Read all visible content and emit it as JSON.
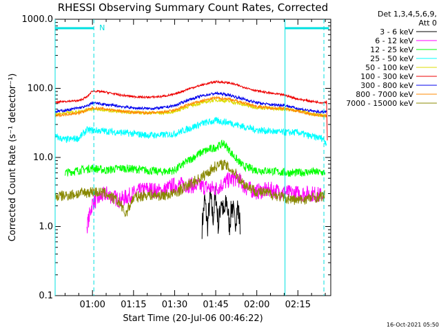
{
  "chart_data": {
    "type": "line",
    "title": "RHESSI Observing Summary Count Rates, Corrected",
    "ylabel": "Corrected Count Rate (s⁻¹ detector⁻¹)",
    "xlabel": "Start Time (20-Jul-06 00:46:22)",
    "footer": "16-Oct-2021 05:50",
    "yscale": "log",
    "ylim": [
      0.1,
      1000
    ],
    "xlim_minutes": [
      46.37,
      147.0
    ],
    "yticks": [
      {
        "v": 0.1,
        "label": "0.1"
      },
      {
        "v": 1,
        "label": "1.0"
      },
      {
        "v": 10,
        "label": "10.0"
      },
      {
        "v": 100,
        "label": "100.0"
      },
      {
        "v": 1000,
        "label": "1000.0"
      }
    ],
    "xticks": [
      {
        "m": 60,
        "label": "01:00"
      },
      {
        "m": 75,
        "label": "01:15"
      },
      {
        "m": 90,
        "label": "01:30"
      },
      {
        "m": 105,
        "label": "01:45"
      },
      {
        "m": 120,
        "label": "02:00"
      },
      {
        "m": 135,
        "label": "02:15"
      }
    ],
    "legend": {
      "placement": "top-right",
      "header1": "Det 1,3,4,5,6,9,",
      "header2": "Att 0"
    },
    "night_flag": {
      "label": "N",
      "start_min": 46.37,
      "end_min": 146.4
    },
    "markers": [
      {
        "m": 46.37,
        "style": "solid",
        "color": "#00e0e0"
      },
      {
        "m": 60.5,
        "style": "dashed",
        "color": "#00e0e0"
      },
      {
        "m": 130.3,
        "style": "solid",
        "color": "#00e0e0"
      },
      {
        "m": 144.5,
        "style": "dashed",
        "color": "#00e0e0"
      }
    ],
    "series": [
      {
        "name": "3 - 6 keV",
        "color": "#000000",
        "points": [
          [
            100,
            1
          ],
          [
            101,
            2.5
          ],
          [
            102,
            1
          ],
          [
            103,
            2.8
          ],
          [
            104,
            1.3
          ],
          [
            105,
            3
          ],
          [
            106,
            1
          ],
          [
            107,
            2.6
          ],
          [
            108,
            1.4
          ],
          [
            109,
            2.4
          ],
          [
            110,
            1
          ],
          [
            111,
            2.2
          ],
          [
            112,
            1.1
          ],
          [
            113,
            2
          ],
          [
            114,
            1
          ]
        ]
      },
      {
        "name": "6 - 12 keV",
        "color": "#ff00ff",
        "points": [
          [
            58,
            1
          ],
          [
            60,
            2.2
          ],
          [
            65,
            3
          ],
          [
            70,
            2.4
          ],
          [
            75,
            3
          ],
          [
            80,
            3.5
          ],
          [
            85,
            3.2
          ],
          [
            90,
            4
          ],
          [
            95,
            4
          ],
          [
            100,
            3.8
          ],
          [
            105,
            3.5
          ],
          [
            110,
            4.8
          ],
          [
            113,
            5
          ],
          [
            116,
            3.6
          ],
          [
            120,
            3.2
          ],
          [
            125,
            3.4
          ],
          [
            130,
            3.1
          ],
          [
            135,
            3
          ],
          [
            140,
            3
          ],
          [
            144,
            2.8
          ]
        ]
      },
      {
        "name": "12 - 25 keV",
        "color": "#00ff00",
        "points": [
          [
            50,
            6
          ],
          [
            55,
            6.5
          ],
          [
            60,
            7
          ],
          [
            65,
            6.5
          ],
          [
            70,
            7
          ],
          [
            75,
            6.8
          ],
          [
            80,
            6.5
          ],
          [
            85,
            6.2
          ],
          [
            90,
            6.5
          ],
          [
            95,
            9
          ],
          [
            100,
            12
          ],
          [
            105,
            14
          ],
          [
            108,
            16
          ],
          [
            112,
            10
          ],
          [
            115,
            7.5
          ],
          [
            120,
            6.5
          ],
          [
            125,
            6.4
          ],
          [
            130,
            6
          ],
          [
            135,
            6
          ],
          [
            140,
            6.2
          ],
          [
            145,
            6
          ]
        ]
      },
      {
        "name": "25 - 50 keV",
        "color": "#00ffff",
        "points": [
          [
            46.37,
            20
          ],
          [
            50,
            18
          ],
          [
            55,
            19
          ],
          [
            58,
            25
          ],
          [
            65,
            24
          ],
          [
            70,
            23
          ],
          [
            75,
            22
          ],
          [
            80,
            21
          ],
          [
            85,
            21
          ],
          [
            90,
            22
          ],
          [
            95,
            26
          ],
          [
            100,
            31
          ],
          [
            105,
            34
          ],
          [
            110,
            32
          ],
          [
            115,
            28
          ],
          [
            120,
            25
          ],
          [
            125,
            24
          ],
          [
            130,
            23
          ],
          [
            135,
            23
          ],
          [
            140,
            20
          ],
          [
            144,
            19
          ],
          [
            145.5,
            16
          ]
        ]
      },
      {
        "name": "50 - 100 keV",
        "color": "#dddd00",
        "points": [
          [
            46.37,
            42
          ],
          [
            50,
            44
          ],
          [
            55,
            46
          ],
          [
            58,
            49
          ],
          [
            60,
            50
          ],
          [
            65,
            48
          ],
          [
            70,
            46
          ],
          [
            75,
            45
          ],
          [
            80,
            44
          ],
          [
            85,
            44
          ],
          [
            90,
            46
          ],
          [
            95,
            55
          ],
          [
            100,
            62
          ],
          [
            105,
            68
          ],
          [
            110,
            65
          ],
          [
            115,
            58
          ],
          [
            120,
            53
          ],
          [
            125,
            51
          ],
          [
            130,
            50
          ],
          [
            135,
            48
          ],
          [
            140,
            43
          ],
          [
            144,
            40
          ],
          [
            145.5,
            40
          ]
        ]
      },
      {
        "name": "100 - 300 keV",
        "color": "#ee0000",
        "points": [
          [
            46.37,
            62
          ],
          [
            50,
            65
          ],
          [
            55,
            66
          ],
          [
            58,
            75
          ],
          [
            60,
            92
          ],
          [
            65,
            88
          ],
          [
            70,
            80
          ],
          [
            75,
            76
          ],
          [
            80,
            74
          ],
          [
            85,
            76
          ],
          [
            90,
            82
          ],
          [
            95,
            98
          ],
          [
            100,
            112
          ],
          [
            105,
            125
          ],
          [
            110,
            120
          ],
          [
            115,
            105
          ],
          [
            120,
            92
          ],
          [
            125,
            85
          ],
          [
            130,
            80
          ],
          [
            135,
            70
          ],
          [
            140,
            65
          ],
          [
            144,
            62
          ],
          [
            145.5,
            64
          ],
          [
            145.8,
            12
          ]
        ]
      },
      {
        "name": "300 - 800 keV",
        "color": "#0000ee",
        "points": [
          [
            46.37,
            46
          ],
          [
            50,
            48
          ],
          [
            55,
            52
          ],
          [
            58,
            55
          ],
          [
            60,
            62
          ],
          [
            65,
            58
          ],
          [
            70,
            55
          ],
          [
            75,
            52
          ],
          [
            80,
            51
          ],
          [
            85,
            52
          ],
          [
            90,
            56
          ],
          [
            95,
            68
          ],
          [
            100,
            78
          ],
          [
            105,
            85
          ],
          [
            110,
            80
          ],
          [
            115,
            70
          ],
          [
            120,
            62
          ],
          [
            125,
            58
          ],
          [
            130,
            57
          ],
          [
            135,
            51
          ],
          [
            140,
            47
          ],
          [
            144,
            45
          ],
          [
            145.5,
            46
          ]
        ]
      },
      {
        "name": "800 - 7000 keV",
        "color": "#ff8800",
        "points": [
          [
            46.37,
            40
          ],
          [
            50,
            42
          ],
          [
            55,
            44
          ],
          [
            58,
            48
          ],
          [
            60,
            52
          ],
          [
            65,
            50
          ],
          [
            70,
            47
          ],
          [
            75,
            45
          ],
          [
            80,
            44
          ],
          [
            85,
            45
          ],
          [
            90,
            48
          ],
          [
            95,
            58
          ],
          [
            100,
            66
          ],
          [
            105,
            73
          ],
          [
            110,
            70
          ],
          [
            115,
            62
          ],
          [
            120,
            55
          ],
          [
            125,
            52
          ],
          [
            130,
            51
          ],
          [
            135,
            47
          ],
          [
            140,
            42
          ],
          [
            144,
            40
          ],
          [
            145.5,
            40
          ]
        ]
      },
      {
        "name": "7000 - 15000 keV",
        "color": "#888800",
        "points": [
          [
            46.37,
            2.7
          ],
          [
            50,
            2.8
          ],
          [
            55,
            3
          ],
          [
            60,
            3.2
          ],
          [
            65,
            3
          ],
          [
            70,
            2.2
          ],
          [
            72,
            1.5
          ],
          [
            75,
            2.6
          ],
          [
            80,
            2.9
          ],
          [
            85,
            2.8
          ],
          [
            90,
            3
          ],
          [
            95,
            4
          ],
          [
            100,
            5.2
          ],
          [
            105,
            7.5
          ],
          [
            108,
            8
          ],
          [
            112,
            6
          ],
          [
            115,
            4.2
          ],
          [
            120,
            3.2
          ],
          [
            125,
            3
          ],
          [
            130,
            2.6
          ],
          [
            135,
            2.4
          ],
          [
            140,
            2.6
          ],
          [
            145,
            2.8
          ]
        ]
      }
    ]
  }
}
